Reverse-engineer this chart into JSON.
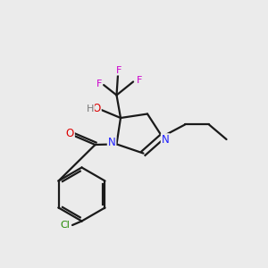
{
  "background_color": "#ebebeb",
  "bond_color": "#1a1a1a",
  "atom_colors": {
    "N": "#2020ff",
    "O": "#dd0000",
    "F": "#cc00cc",
    "Cl": "#228800",
    "H": "#777777",
    "C": "#1a1a1a"
  },
  "figsize": [
    3.0,
    3.0
  ],
  "dpi": 100,
  "lw": 1.6
}
